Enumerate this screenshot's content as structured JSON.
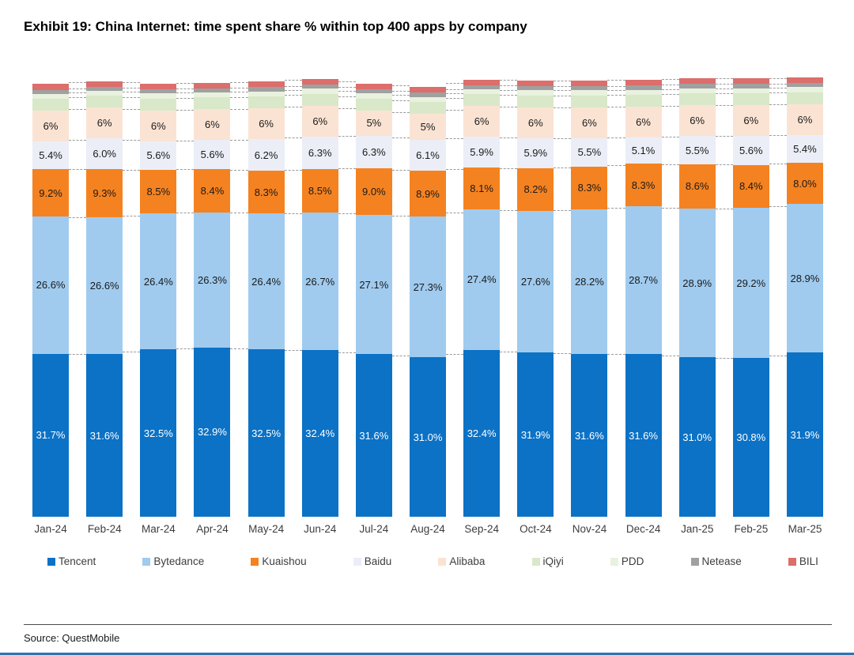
{
  "title": "Exhibit 19: China Internet: time spent share % within top 400 apps by company",
  "source": "Source: QuestMobile",
  "colors": {
    "accent_bottom_line": "#2e74b5",
    "divider": "#4d4d4d",
    "dashed_connector": "#9b9b9b"
  },
  "chart_data": {
    "type": "bar",
    "stacked": true,
    "unit": "%",
    "title": "",
    "xlabel": "",
    "ylabel": "",
    "ylim": [
      0,
      86
    ],
    "axis_max": 86,
    "grid": false,
    "legend_position": "bottom",
    "categories": [
      "Jan-24",
      "Feb-24",
      "Mar-24",
      "Apr-24",
      "May-24",
      "Jun-24",
      "Jul-24",
      "Aug-24",
      "Sep-24",
      "Oct-24",
      "Nov-24",
      "Dec-24",
      "Jan-25",
      "Feb-25",
      "Mar-25"
    ],
    "series": [
      {
        "name": "Tencent",
        "color": "#0b72c6",
        "label_color": "#ffffff",
        "values": [
          31.7,
          31.6,
          32.5,
          32.9,
          32.5,
          32.4,
          31.6,
          31.0,
          32.4,
          31.9,
          31.6,
          31.6,
          31.0,
          30.8,
          31.9
        ],
        "labels": [
          "31.7%",
          "31.6%",
          "32.5%",
          "32.9%",
          "32.5%",
          "32.4%",
          "31.6%",
          "31.0%",
          "32.4%",
          "31.9%",
          "31.6%",
          "31.6%",
          "31.0%",
          "30.8%",
          "31.9%"
        ]
      },
      {
        "name": "Bytedance",
        "color": "#a0cbef",
        "label_color": "#1a1a1a",
        "values": [
          26.6,
          26.6,
          26.4,
          26.3,
          26.4,
          26.7,
          27.1,
          27.3,
          27.4,
          27.6,
          28.2,
          28.7,
          28.9,
          29.2,
          28.9
        ],
        "labels": [
          "26.6%",
          "26.6%",
          "26.4%",
          "26.3%",
          "26.4%",
          "26.7%",
          "27.1%",
          "27.3%",
          "27.4%",
          "27.6%",
          "28.2%",
          "28.7%",
          "28.9%",
          "29.2%",
          "28.9%"
        ]
      },
      {
        "name": "Kuaishou",
        "color": "#f58220",
        "label_color": "#1a1a1a",
        "values": [
          9.2,
          9.3,
          8.5,
          8.4,
          8.3,
          8.5,
          9.0,
          8.9,
          8.1,
          8.2,
          8.3,
          8.3,
          8.6,
          8.4,
          8.0
        ],
        "labels": [
          "9.2%",
          "9.3%",
          "8.5%",
          "8.4%",
          "8.3%",
          "8.5%",
          "9.0%",
          "8.9%",
          "8.1%",
          "8.2%",
          "8.3%",
          "8.3%",
          "8.6%",
          "8.4%",
          "8.0%"
        ]
      },
      {
        "name": "Baidu",
        "color": "#ebeef7",
        "label_color": "#1a1a1a",
        "values": [
          5.4,
          6.0,
          5.6,
          5.6,
          6.2,
          6.3,
          6.3,
          6.1,
          5.9,
          5.9,
          5.5,
          5.1,
          5.5,
          5.6,
          5.4
        ],
        "labels": [
          "5.4%",
          "6.0%",
          "5.6%",
          "5.6%",
          "6.2%",
          "6.3%",
          "6.3%",
          "6.1%",
          "5.9%",
          "5.9%",
          "5.5%",
          "5.1%",
          "5.5%",
          "5.6%",
          "5.4%"
        ]
      },
      {
        "name": "Alibaba",
        "color": "#fbe3d3",
        "label_color": "#1a1a1a",
        "values": [
          6,
          6,
          6,
          6,
          6,
          6,
          5,
          5,
          6,
          6,
          6,
          6,
          6,
          6,
          6
        ],
        "labels": [
          "6%",
          "6%",
          "6%",
          "6%",
          "6%",
          "6%",
          "5%",
          "5%",
          "6%",
          "6%",
          "6%",
          "6%",
          "6%",
          "6%",
          "6%"
        ]
      },
      {
        "name": "iQiyi",
        "color": "#d9e8c8",
        "label_color": "#1a1a1a",
        "values": [
          2.3,
          2.3,
          2.3,
          2.3,
          2.3,
          2.3,
          2.3,
          2.3,
          2.3,
          2.3,
          2.3,
          2.3,
          2.3,
          2.3,
          2.3
        ],
        "labels": [
          "",
          "",
          "",
          "",
          "",
          "",
          "",
          "",
          "",
          "",
          "",
          "",
          "",
          "",
          ""
        ]
      },
      {
        "name": "PDD",
        "color": "#e8f2de",
        "label_color": "#1a1a1a",
        "values": [
          1.0,
          1.0,
          1.0,
          1.0,
          1.0,
          1.0,
          1.0,
          1.0,
          1.0,
          1.0,
          1.0,
          1.0,
          1.0,
          1.0,
          1.0
        ],
        "labels": [
          "",
          "",
          "",
          "",
          "",
          "",
          "",
          "",
          "",
          "",
          "",
          "",
          "",
          "",
          ""
        ]
      },
      {
        "name": "Netease",
        "color": "#a0a0a0",
        "label_color": "#1a1a1a",
        "values": [
          0.8,
          0.8,
          0.8,
          0.8,
          0.8,
          0.8,
          0.8,
          0.8,
          0.8,
          0.8,
          0.8,
          0.8,
          0.8,
          0.8,
          0.8
        ],
        "labels": [
          "",
          "",
          "",
          "",
          "",
          "",
          "",
          "",
          "",
          "",
          "",
          "",
          "",
          "",
          ""
        ]
      },
      {
        "name": "BILI",
        "color": "#dc6e6c",
        "label_color": "#1a1a1a",
        "values": [
          1.1,
          1.1,
          1.1,
          1.1,
          1.1,
          1.1,
          1.1,
          1.1,
          1.1,
          1.1,
          1.1,
          1.1,
          1.1,
          1.1,
          1.1
        ],
        "labels": [
          "",
          "",
          "",
          "",
          "",
          "",
          "",
          "",
          "",
          "",
          "",
          "",
          "",
          "",
          ""
        ]
      }
    ]
  }
}
